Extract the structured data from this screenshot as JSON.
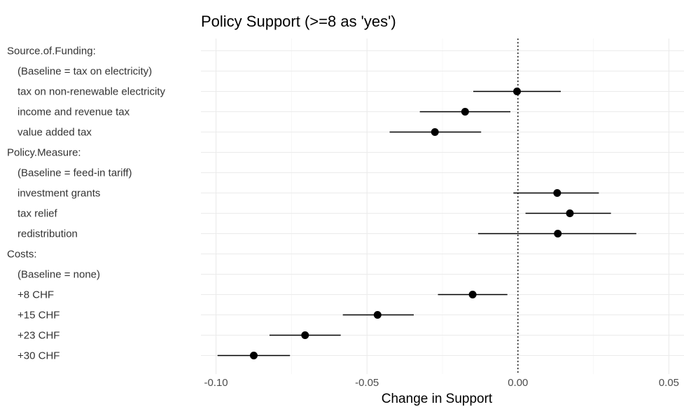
{
  "chart_data": {
    "type": "scatter",
    "subtype": "coefficient-plot",
    "title": "Policy Support (>=8 as 'yes')",
    "xlabel": "Change in Support",
    "ylabel": "",
    "xlim": [
      -0.105,
      0.055
    ],
    "xticks": [
      -0.1,
      -0.05,
      0.0,
      0.05
    ],
    "xtick_labels": [
      "-0.10",
      "-0.05",
      "0.00",
      "0.05"
    ],
    "grid": true,
    "reference_line": {
      "x": 0,
      "style": "dotted"
    },
    "rows": [
      {
        "label": "Source.of.Funding:",
        "estimate": null,
        "lower": null,
        "upper": null
      },
      {
        "label": "(Baseline = tax on electricity)",
        "estimate": null,
        "lower": null,
        "upper": null
      },
      {
        "label": "tax on non-renewable electricity",
        "estimate": -0.0003,
        "lower": -0.0148,
        "upper": 0.0142
      },
      {
        "label": "income and revenue tax",
        "estimate": -0.0175,
        "lower": -0.0325,
        "upper": -0.0025
      },
      {
        "label": "value added tax",
        "estimate": -0.0275,
        "lower": -0.0425,
        "upper": -0.0122
      },
      {
        "label": "Policy.Measure:",
        "estimate": null,
        "lower": null,
        "upper": null
      },
      {
        "label": "(Baseline = feed-in tariff)",
        "estimate": null,
        "lower": null,
        "upper": null
      },
      {
        "label": "investment grants",
        "estimate": 0.013,
        "lower": -0.0015,
        "upper": 0.0268
      },
      {
        "label": "tax relief",
        "estimate": 0.0172,
        "lower": 0.0025,
        "upper": 0.0308
      },
      {
        "label": "redistribution",
        "estimate": 0.0132,
        "lower": -0.0132,
        "upper": 0.0392
      },
      {
        "label": "Costs:",
        "estimate": null,
        "lower": null,
        "upper": null
      },
      {
        "label": "(Baseline = none)",
        "estimate": null,
        "lower": null,
        "upper": null
      },
      {
        "label": "+8 CHF",
        "estimate": -0.015,
        "lower": -0.0265,
        "upper": -0.0035
      },
      {
        "label": "+15 CHF",
        "estimate": -0.0465,
        "lower": -0.058,
        "upper": -0.0345
      },
      {
        "label": "+23 CHF",
        "estimate": -0.0705,
        "lower": -0.0823,
        "upper": -0.0587
      },
      {
        "label": "+30 CHF",
        "estimate": -0.0875,
        "lower": -0.0995,
        "upper": -0.0755
      }
    ]
  }
}
